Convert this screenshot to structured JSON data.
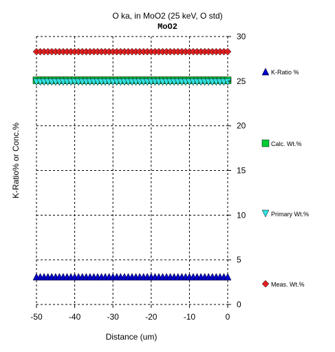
{
  "chart_data": {
    "type": "scatter",
    "title": "O ka, in MoO2 (25 keV, O std)",
    "subtitle": "MoO2",
    "xlabel": "Distance (um)",
    "ylabel": "K-Ratio% or Conc.%",
    "xlim": [
      -50,
      0
    ],
    "ylim": [
      0,
      30
    ],
    "x_ticks": [
      "-50",
      "-40",
      "-30",
      "-20",
      "-10",
      "0"
    ],
    "y_ticks": [
      "0",
      "5",
      "10",
      "15",
      "20",
      "25",
      "30"
    ],
    "y_axis_side": "right",
    "grid": true,
    "legend_placement": "right",
    "series": [
      {
        "name": "K-Ratio %",
        "marker": "triangle-up",
        "color": "#0000cc",
        "value": 3.1
      },
      {
        "name": "Calc. Wt.%",
        "marker": "square",
        "color": "#00cc33",
        "value": 25.1
      },
      {
        "name": "Primary Wt.%",
        "marker": "triangle-down",
        "color": "#33e0e0",
        "value": 24.9
      },
      {
        "name": "Meas. Wt.%",
        "marker": "diamond",
        "color": "#e02020",
        "value": 28.3
      }
    ]
  }
}
